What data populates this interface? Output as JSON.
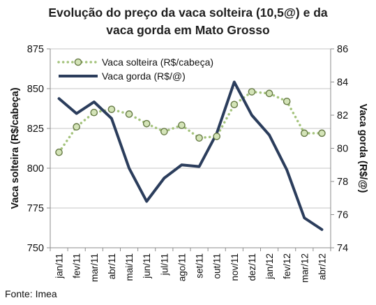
{
  "title_lines": [
    "Evolução do preço da vaca solteira (10,5@) e da",
    "vaca gorda em Mato Grosso"
  ],
  "source": "Fonte: Imea",
  "chart_data": {
    "type": "line",
    "title": "Evolução do preço da vaca solteira (10,5@) e da vaca gorda em Mato Grosso",
    "categories": [
      "jan/11",
      "fev/11",
      "mar/11",
      "abr/11",
      "mai/11",
      "jun/11",
      "jul/11",
      "ago/11",
      "set/11",
      "out/11",
      "nov/11",
      "dez/11",
      "jan/12",
      "fev/12",
      "mar/12",
      "abr/12"
    ],
    "ylabel_left": "Vaca solteira (R$/cabeça)",
    "ylabel_right": "Vaca gorda (R$/@)",
    "ylim_left": [
      750,
      875
    ],
    "yticks_left": [
      "750",
      "775",
      "800",
      "825",
      "850",
      "875"
    ],
    "ylim_right": [
      74,
      86
    ],
    "yticks_right": [
      "74",
      "76",
      "78",
      "80",
      "82",
      "84",
      "86"
    ],
    "grid": true,
    "legend_position": "top-left",
    "series": [
      {
        "name": "Vaca solteira (R$/cabeça)",
        "axis": "left",
        "style": "dotted-markers",
        "color": "#a4c37c",
        "marker_fill": "#d4e4b8",
        "marker_stroke": "#667a45",
        "values": [
          810,
          826,
          835,
          837,
          834,
          828,
          823,
          827,
          819,
          820,
          840,
          848,
          847,
          842,
          822,
          822
        ]
      },
      {
        "name": "Vaca gorda (R$/@)",
        "axis": "right",
        "style": "solid",
        "color": "#2b3d5c",
        "values": [
          83.0,
          82.1,
          82.8,
          81.8,
          78.8,
          76.8,
          78.2,
          79.0,
          78.9,
          80.9,
          84.0,
          82.0,
          80.8,
          78.7,
          75.8,
          75.1
        ]
      }
    ]
  }
}
